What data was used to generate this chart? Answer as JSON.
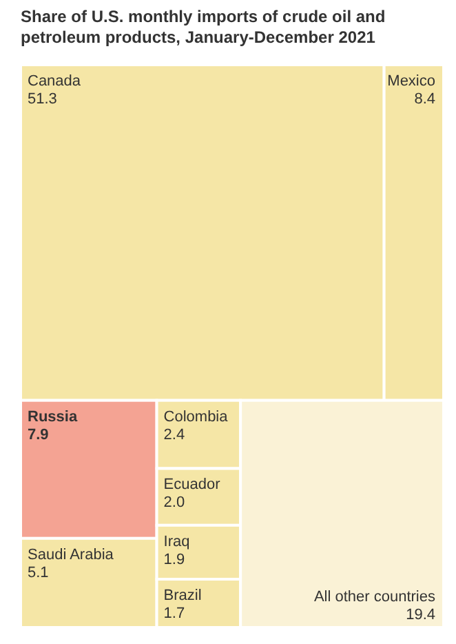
{
  "chart_data": {
    "type": "other",
    "title": "Share of U.S. monthly imports of crude oil and petroleum products, January-December 2021",
    "categories": [
      "Canada",
      "Mexico",
      "Russia",
      "Saudi Arabia",
      "Colombia",
      "Ecuador",
      "Iraq",
      "Brazil",
      "All other countries"
    ],
    "values": [
      51.3,
      8.4,
      7.9,
      5.1,
      2.4,
      2.0,
      1.9,
      1.7,
      19.4
    ],
    "colors": [
      "#f5e6a6",
      "#f5e6a6",
      "#f4a393",
      "#f5e6a6",
      "#f5e6a6",
      "#f5e6a6",
      "#f5e6a6",
      "#f5e6a6",
      "#faf2d6"
    ],
    "value_labels": [
      "51.3",
      "8.4",
      "7.9",
      "5.1",
      "2.4",
      "2.0",
      "1.9",
      "1.7",
      "19.4"
    ]
  }
}
